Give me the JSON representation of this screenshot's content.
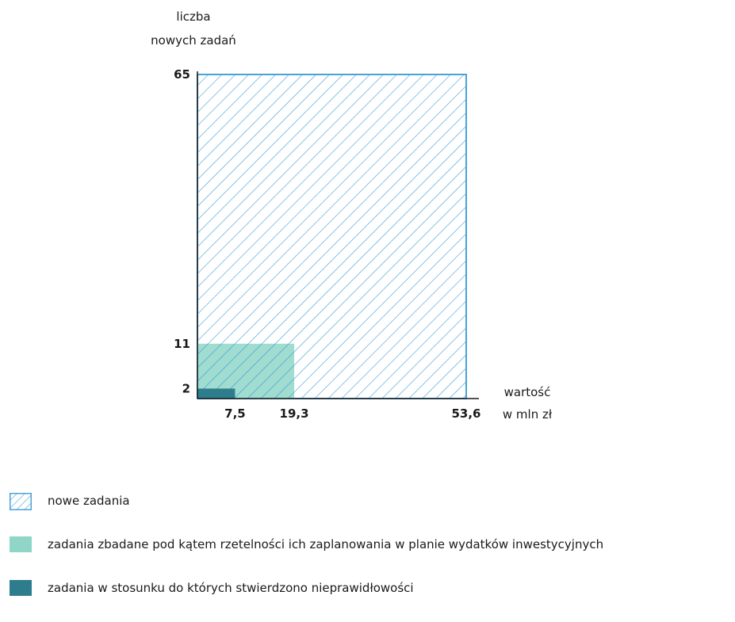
{
  "chart_data": {
    "type": "area",
    "y_axis_label_lines": [
      "liczba",
      "nowych zadań"
    ],
    "x_axis_label_lines": [
      "wartość",
      "w mln zł"
    ],
    "x_ticks": [
      "7,5",
      "19,3",
      "53,6"
    ],
    "y_ticks": [
      "2",
      "11",
      "65"
    ],
    "x_range": [
      0,
      53.6
    ],
    "y_range": [
      0,
      65
    ],
    "series": [
      {
        "name": "nowe zadania",
        "x_value": 53.6,
        "y_value": 65,
        "style": "hatched",
        "color": "#4aa3d8"
      },
      {
        "name": "zadania zbadane pod kątem rzetelności ich zaplanowania w planie wydatków inwestycyjnych",
        "x_value": 19.3,
        "y_value": 11,
        "style": "solid",
        "color": "#8fd6c8"
      },
      {
        "name": "zadania w stosunku do których stwierdzono nieprawidłowości",
        "x_value": 7.5,
        "y_value": 2,
        "style": "solid",
        "color": "#2e7d8c"
      }
    ],
    "grid": false,
    "legend_position": "bottom-left"
  }
}
